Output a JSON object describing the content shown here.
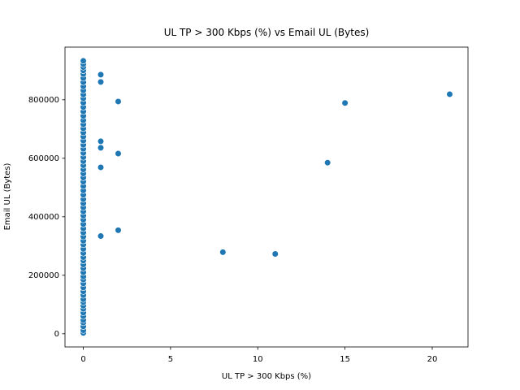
{
  "chart_data": {
    "type": "scatter",
    "title": "UL TP > 300 Kbps (%) vs Email UL (Bytes)",
    "x_label": "UL TP > 300 Kbps (%)",
    "y_label": "Email UL (Bytes)",
    "color": "#1f77b4",
    "x": [
      0,
      0,
      0,
      0,
      0,
      0,
      0,
      0,
      0,
      0,
      0,
      0,
      0,
      0,
      0,
      0,
      0,
      0,
      0,
      0,
      0,
      0,
      0,
      0,
      0,
      0,
      0,
      0,
      0,
      0,
      0,
      0,
      0,
      0,
      0,
      0,
      0,
      0,
      0,
      0,
      0,
      0,
      0,
      0,
      0,
      0,
      0,
      0,
      0,
      0,
      0,
      0,
      0,
      0,
      0,
      0,
      0,
      0,
      0,
      0,
      0,
      0,
      0,
      0,
      0,
      0,
      0,
      0,
      0,
      0,
      1,
      1,
      1,
      1,
      1,
      1,
      2,
      2,
      2,
      8,
      11,
      14,
      15,
      21
    ],
    "values": [
      3000,
      12000,
      25000,
      38000,
      47000,
      60000,
      72000,
      85000,
      96000,
      108000,
      118000,
      132000,
      145000,
      158000,
      172000,
      185000,
      196000,
      210000,
      224000,
      237000,
      250000,
      262000,
      276000,
      290000,
      305000,
      318000,
      332000,
      346000,
      360000,
      375000,
      390000,
      404000,
      418000,
      432000,
      446000,
      460000,
      475000,
      490000,
      505000,
      520000,
      534000,
      548000,
      562000,
      576000,
      590000,
      604000,
      618000,
      632000,
      646000,
      660000,
      674000,
      688000,
      702000,
      716000,
      730000,
      745000,
      760000,
      775000,
      790000,
      805000,
      818000,
      832000,
      846000,
      860000,
      874000,
      888000,
      900000,
      912000,
      922000,
      933000,
      886000,
      861000,
      658000,
      636000,
      569000,
      334000,
      794000,
      616000,
      354000,
      279000,
      273000,
      585000,
      789000,
      819000
    ],
    "xlim": [
      -1.05,
      22.05
    ],
    "xticks": [
      0,
      5,
      10,
      15,
      20
    ],
    "ylim": [
      -45000,
      980000
    ],
    "yticks": [
      0,
      200000,
      400000,
      600000,
      800000
    ]
  }
}
